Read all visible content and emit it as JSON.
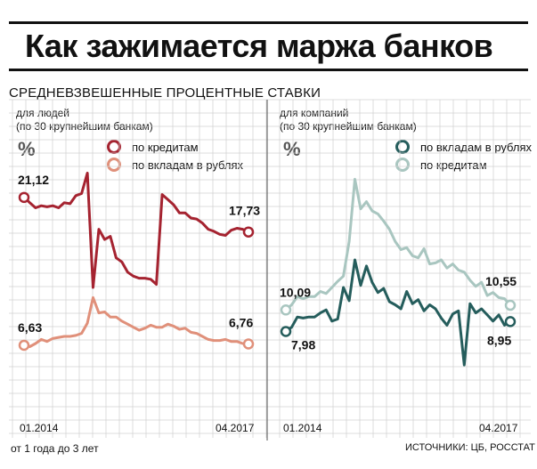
{
  "title": "Как зажимается маржа банков",
  "section_title": "СРЕДНЕВЗВЕШЕННЫЕ ПРОЦЕНТНЫЕ СТАВКИ",
  "unit": "%",
  "footnote": "от 1 года до 3 лет",
  "source": "ИСТОЧНИКИ: ЦБ, РОССТАТ",
  "colors": {
    "people_loans": "#a52330",
    "people_deposits": "#e0907a",
    "company_deposits": "#255d5c",
    "company_loans": "#a9c6c0",
    "grid": "#d0d0d0"
  },
  "chart_data": [
    {
      "type": "line",
      "subtitle": "для людей\n(по 30 крупнейшим банкам)",
      "x_start_label": "01.2014",
      "x_end_label": "04.2017",
      "x": [
        "01.2014",
        "02.2014",
        "03.2014",
        "04.2014",
        "05.2014",
        "06.2014",
        "07.2014",
        "08.2014",
        "09.2014",
        "10.2014",
        "11.2014",
        "12.2014",
        "01.2015",
        "02.2015",
        "03.2015",
        "04.2015",
        "05.2015",
        "06.2015",
        "07.2015",
        "08.2015",
        "09.2015",
        "10.2015",
        "11.2015",
        "12.2015",
        "01.2016",
        "02.2016",
        "03.2016",
        "04.2016",
        "05.2016",
        "06.2016",
        "07.2016",
        "08.2016",
        "09.2016",
        "10.2016",
        "11.2016",
        "12.2016",
        "01.2017",
        "02.2017",
        "03.2017",
        "04.2017"
      ],
      "ylim": [
        0,
        30
      ],
      "series": [
        {
          "name": "по кредитам",
          "color_key": "people_loans",
          "start_label": "21,12",
          "end_label": "17,73",
          "values": [
            21.12,
            20.6,
            20.1,
            20.3,
            20.2,
            20.3,
            20.1,
            20.6,
            20.5,
            21.3,
            21.5,
            23.5,
            12.3,
            18.0,
            17.0,
            17.3,
            15.2,
            14.8,
            13.8,
            13.4,
            13.2,
            13.2,
            13.1,
            12.6,
            21.4,
            20.9,
            20.4,
            19.6,
            19.6,
            19.1,
            19.0,
            18.6,
            18.0,
            17.8,
            17.5,
            17.4,
            17.9,
            18.1,
            18.0,
            17.73
          ]
        },
        {
          "name": "по вкладам в рублях",
          "color_key": "people_deposits",
          "start_label": "6,63",
          "end_label": "6,76",
          "values": [
            6.63,
            6.5,
            6.8,
            7.2,
            7.0,
            7.3,
            7.4,
            7.5,
            7.5,
            7.6,
            7.8,
            8.8,
            11.3,
            9.8,
            9.9,
            9.4,
            9.4,
            9.0,
            8.7,
            8.4,
            8.1,
            8.3,
            8.6,
            8.4,
            8.4,
            8.7,
            8.5,
            8.2,
            8.3,
            7.9,
            7.8,
            7.5,
            7.2,
            7.1,
            7.1,
            7.2,
            7.0,
            7.0,
            6.8,
            6.76
          ]
        }
      ]
    },
    {
      "type": "line",
      "subtitle": "для компаний\n(по 30 крупнейшим банкам)",
      "x_start_label": "01.2014",
      "x_end_label": "04.2017",
      "x": [
        "01.2014",
        "02.2014",
        "03.2014",
        "04.2014",
        "05.2014",
        "06.2014",
        "07.2014",
        "08.2014",
        "09.2014",
        "10.2014",
        "11.2014",
        "12.2014",
        "01.2015",
        "02.2015",
        "03.2015",
        "04.2015",
        "05.2015",
        "06.2015",
        "07.2015",
        "08.2015",
        "09.2015",
        "10.2015",
        "11.2015",
        "12.2015",
        "01.2016",
        "02.2016",
        "03.2016",
        "04.2016",
        "05.2016",
        "06.2016",
        "07.2016",
        "08.2016",
        "09.2016",
        "10.2016",
        "11.2016",
        "12.2016",
        "01.2017",
        "02.2017",
        "03.2017",
        "04.2017"
      ],
      "ylim": [
        0,
        30
      ],
      "series": [
        {
          "name": "по вкладам в рублях",
          "color_key": "company_deposits",
          "start_label": "7,98",
          "end_label": "8,95",
          "values": [
            7.98,
            8.4,
            9.4,
            9.3,
            9.4,
            9.4,
            9.8,
            10.1,
            9.0,
            9.2,
            12.3,
            11.0,
            15.0,
            12.5,
            14.4,
            12.8,
            11.8,
            12.2,
            10.9,
            10.6,
            10.2,
            11.9,
            10.7,
            11.1,
            10.0,
            10.6,
            10.2,
            9.3,
            8.6,
            9.7,
            10.0,
            4.7,
            10.7,
            9.8,
            10.2,
            9.6,
            9.0,
            9.6,
            8.6,
            8.95
          ]
        },
        {
          "name": "по кредитам",
          "color_key": "company_loans",
          "start_label": "10,09",
          "end_label": "10,55",
          "values": [
            10.09,
            10.6,
            11.4,
            11.2,
            11.4,
            11.4,
            11.9,
            11.7,
            12.3,
            12.9,
            13.4,
            16.8,
            22.9,
            20.0,
            20.7,
            19.8,
            19.5,
            18.8,
            18.0,
            16.8,
            16.0,
            16.2,
            15.4,
            15.2,
            16.1,
            14.6,
            14.7,
            15.0,
            14.2,
            14.6,
            14.0,
            13.8,
            13.0,
            12.4,
            12.8,
            11.5,
            11.8,
            11.3,
            11.2,
            10.55
          ]
        }
      ]
    }
  ]
}
